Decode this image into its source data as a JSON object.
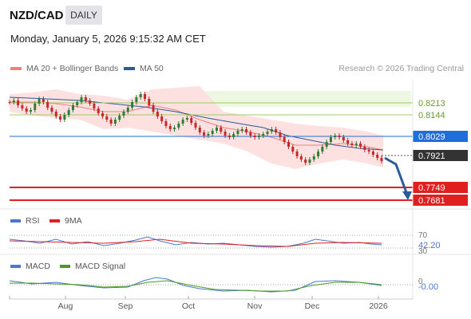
{
  "header": {
    "symbol": "NZD/CAD",
    "timeframe": "DAILY",
    "datetime": "Monday, January 5, 2026 9:15:32 AM CET"
  },
  "legend": {
    "bollinger": {
      "label": "MA 20 + Bollinger Bands",
      "color": "#f08080"
    },
    "ma50": {
      "label": "MA 50",
      "color": "#2a5c9a"
    },
    "credit": "Research © 2026 Trading Central"
  },
  "price_levels": [
    {
      "label": "0.8213",
      "kind": "resistance-green",
      "color": "#9ccc65"
    },
    {
      "label": "0.8144",
      "kind": "resistance-green",
      "color": "#9ccc65"
    },
    {
      "label": "0.8029",
      "kind": "pivot",
      "color": "#1e6fd9"
    },
    {
      "label": "0.7921",
      "kind": "last-price",
      "color": "#333333"
    },
    {
      "label": "0.7749",
      "kind": "support",
      "color": "#e02020"
    },
    {
      "label": "0.7681",
      "kind": "support",
      "color": "#e02020"
    }
  ],
  "rsi": {
    "legend_rsi": "RSI",
    "legend_9ma": "9MA",
    "rsi_color": "#4a78d0",
    "ma_color": "#e02020",
    "level_70": "70",
    "level_30": "30",
    "value": "42.20"
  },
  "macd": {
    "legend_macd": "MACD",
    "legend_signal": "MACD Signal",
    "macd_color": "#4a78d0",
    "signal_color": "#4a9a20",
    "zero": "0",
    "value": "-0.00"
  },
  "x_axis": [
    "Aug",
    "Sep",
    "Oct",
    "Nov",
    "Dec",
    "2026"
  ],
  "colors": {
    "up_candle": "#2e7d32",
    "down_candle": "#c62828",
    "band_fill": "#fde0e0",
    "band_green": "#e8f4d6",
    "arrow": "#2a5c9a"
  }
}
